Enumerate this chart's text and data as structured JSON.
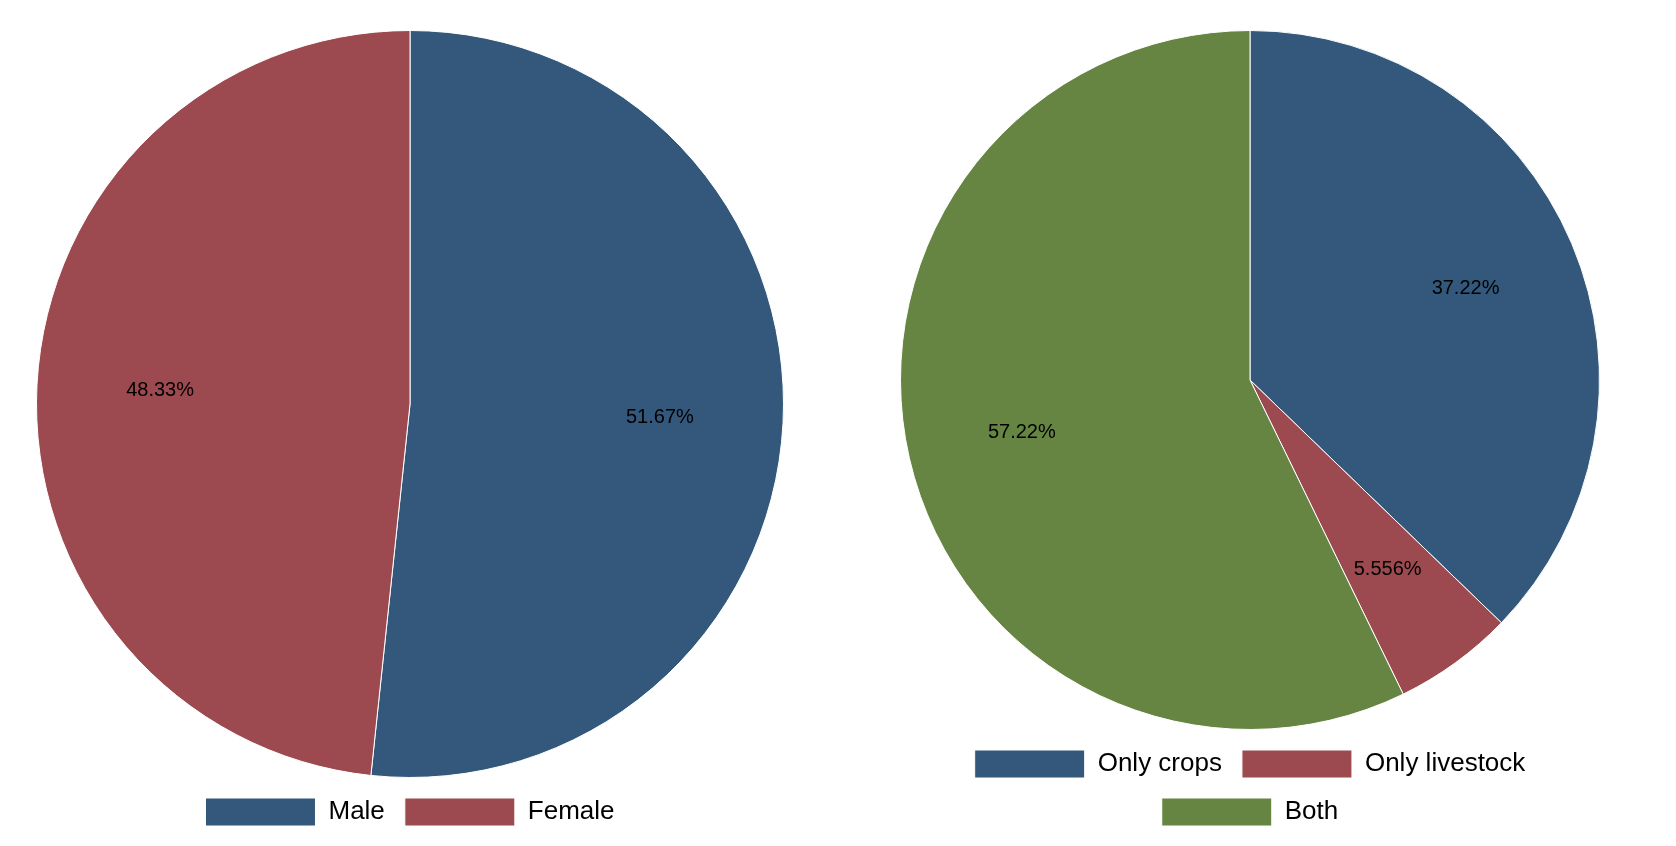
{
  "chart_data": [
    {
      "type": "pie",
      "categories": [
        "Male",
        "Female"
      ],
      "values": [
        51.67,
        48.33
      ],
      "colors": [
        "#33587b",
        "#9c4a4f"
      ],
      "value_labels": [
        "51.67%",
        "48.33%"
      ],
      "legend": "bottom"
    },
    {
      "type": "pie",
      "categories": [
        "Only crops",
        "Only livestock",
        "Both"
      ],
      "values": [
        37.22,
        5.556,
        57.22
      ],
      "colors": [
        "#33587b",
        "#9c4a4f",
        "#668543"
      ],
      "value_labels": [
        "37.22%",
        "5.556%",
        "57.22%"
      ],
      "legend": "bottom"
    }
  ]
}
